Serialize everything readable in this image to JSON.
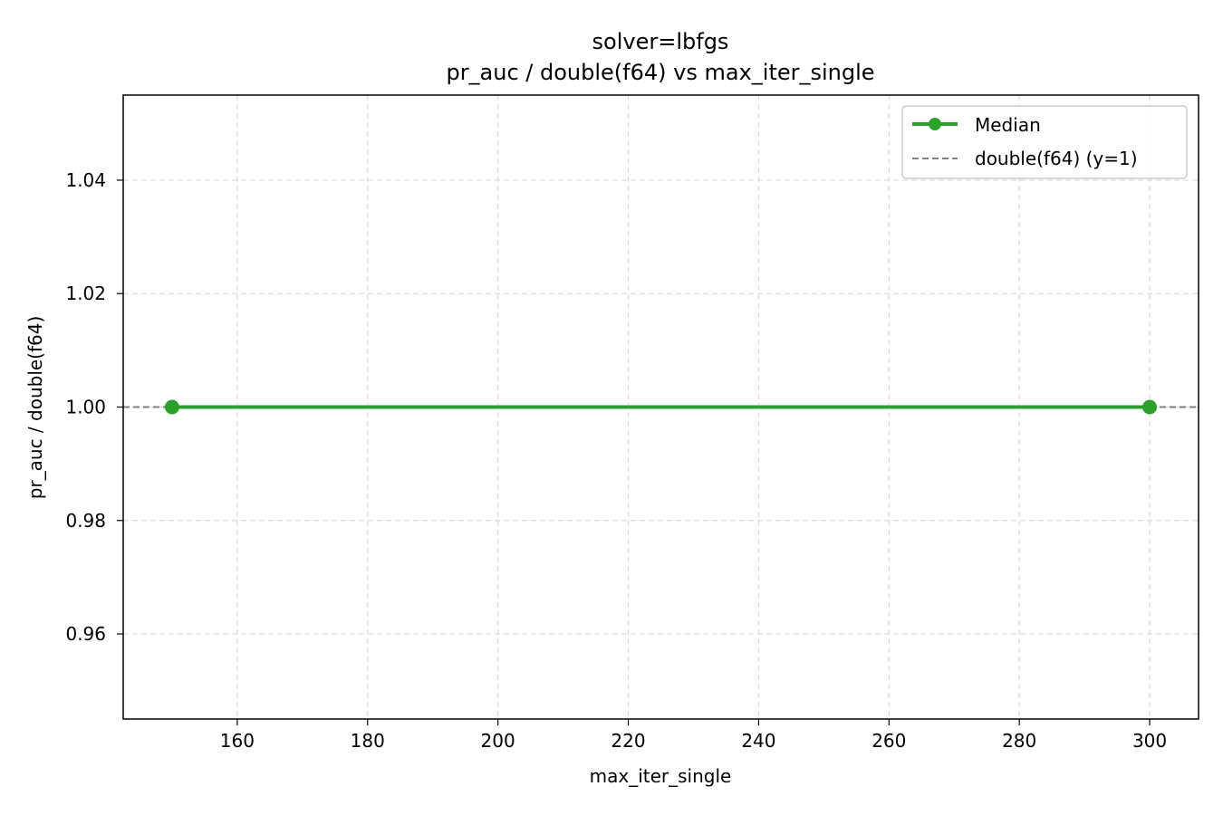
{
  "chart_data": {
    "type": "line",
    "title_line1": "solver=lbfgs",
    "title_line2": "pr_auc / double(f64) vs max_iter_single",
    "xlabel": "max_iter_single",
    "ylabel": "pr_auc / double(f64)",
    "xlim": [
      142.5,
      307.5
    ],
    "ylim": [
      0.945,
      1.055
    ],
    "xticks": [
      160,
      180,
      200,
      220,
      240,
      260,
      280,
      300
    ],
    "xtick_labels": [
      "160",
      "180",
      "200",
      "220",
      "240",
      "260",
      "280",
      "300"
    ],
    "yticks": [
      0.96,
      0.98,
      1.0,
      1.02,
      1.04
    ],
    "ytick_labels": [
      "0.96",
      "0.98",
      "1.00",
      "1.02",
      "1.04"
    ],
    "grid": true,
    "legend_position": "top-right",
    "series": [
      {
        "name": "Median",
        "x": [
          150,
          300
        ],
        "y": [
          1.0,
          1.0
        ],
        "color": "#2ca02c",
        "style": "solid-with-markers"
      }
    ],
    "reference_line": {
      "name": "double(f64) (y=1)",
      "y": 1.0,
      "color": "#808080",
      "style": "dashed"
    }
  }
}
